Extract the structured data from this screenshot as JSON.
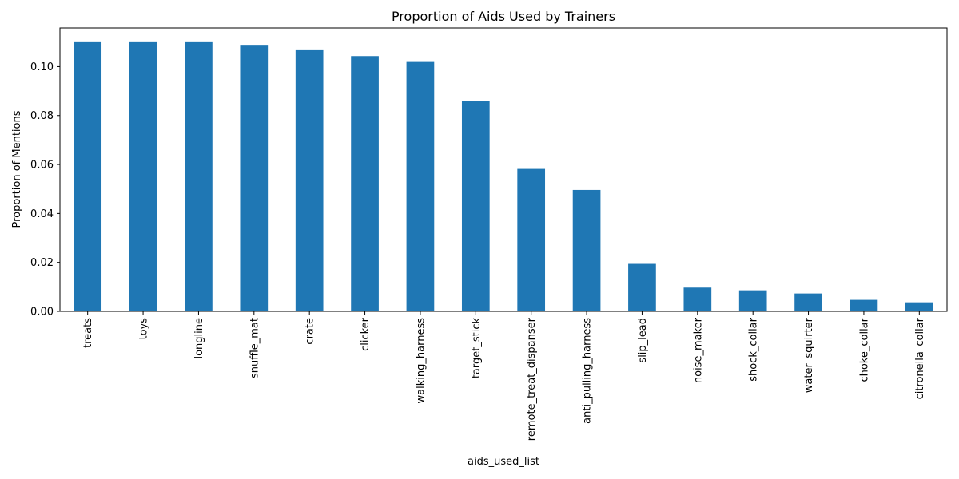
{
  "chart_data": {
    "type": "bar",
    "title": "Proportion of Aids Used by Trainers",
    "xlabel": "aids_used_list",
    "ylabel": "Proportion of Mentions",
    "categories": [
      "treats",
      "toys",
      "longline",
      "snuffle_mat",
      "crate",
      "clicker",
      "walking_harness",
      "target_stick",
      "remote_treat_dispanser",
      "anti_pulling_harness",
      "slip_lead",
      "noise_maker",
      "shock_collar",
      "water_squirter",
      "choke_collar",
      "citronella_collar"
    ],
    "values": [
      0.1103,
      0.1103,
      0.1103,
      0.1089,
      0.1067,
      0.1043,
      0.1019,
      0.0859,
      0.0582,
      0.0496,
      0.0194,
      0.0097,
      0.0086,
      0.0073,
      0.0047,
      0.0037
    ],
    "ylim": [
      0,
      0.1158
    ],
    "yticks": [
      "0.00",
      "0.02",
      "0.04",
      "0.06",
      "0.08",
      "0.10"
    ],
    "grid": false,
    "legend": "none",
    "bar_color": "#1f77b4"
  }
}
